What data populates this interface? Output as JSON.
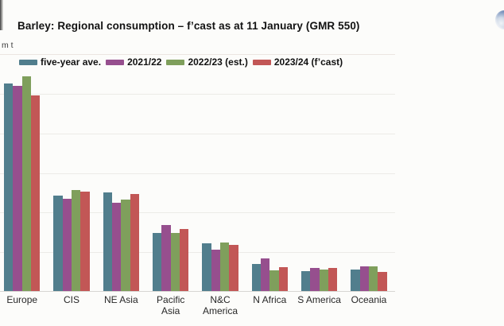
{
  "header": {
    "logo_icon": "globe-icon"
  },
  "chart_data": {
    "type": "bar",
    "title": "Barley: Regional consumption – f’cast as at 11 January (GMR 550)",
    "ylabel": "m t",
    "xlabel": "",
    "ylim": [
      0,
      60
    ],
    "gridline_step": 10,
    "grid": "horizontal",
    "y_tick_labels_visible": false,
    "legend_position": "top-left",
    "categories": [
      "Europe",
      "CIS",
      "NE Asia",
      "Pacific Asia",
      "N&C America",
      "N Africa",
      "S America",
      "Oceania"
    ],
    "tick_labels": [
      "Europe",
      "CIS",
      "NE Asia",
      "Pacific\nAsia",
      "N&C\nAmerica",
      "N Africa",
      "S America",
      "Oceania"
    ],
    "series": [
      {
        "name": "five-year ave.",
        "color": "#517e8d",
        "values": [
          52.3,
          24.1,
          24.9,
          14.7,
          12.1,
          6.9,
          5.0,
          5.4
        ]
      },
      {
        "name": "2021/22",
        "color": "#964f8e",
        "values": [
          51.7,
          23.3,
          22.2,
          16.7,
          10.4,
          8.2,
          5.9,
          6.2
        ]
      },
      {
        "name": "2022/23 (est.)",
        "color": "#7f9f5c",
        "values": [
          54.1,
          25.4,
          23.0,
          14.6,
          12.3,
          5.2,
          5.4,
          6.3
        ]
      },
      {
        "name": "2023/24 (f’cast)",
        "color": "#c25756",
        "values": [
          49.4,
          25.1,
          24.5,
          15.6,
          11.7,
          6.1,
          5.8,
          4.9
        ]
      }
    ]
  }
}
